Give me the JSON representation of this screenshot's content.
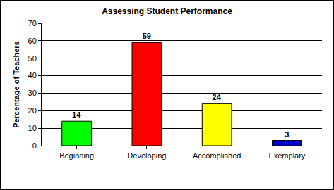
{
  "chart_data": {
    "type": "bar",
    "title": "Assessing Student Performance",
    "ylabel": "Percentage of Teachers",
    "categories": [
      "Beginning",
      "Developing",
      "Accomplished",
      "Exemplary"
    ],
    "values": [
      14,
      59,
      24,
      3
    ],
    "colors": [
      "#00ff00",
      "#ff0000",
      "#ffff00",
      "#0000cc"
    ],
    "ylim": [
      0,
      70
    ],
    "yticks": [
      0,
      10,
      20,
      30,
      40,
      50,
      60,
      70
    ],
    "grid": true,
    "data_labels": true
  }
}
